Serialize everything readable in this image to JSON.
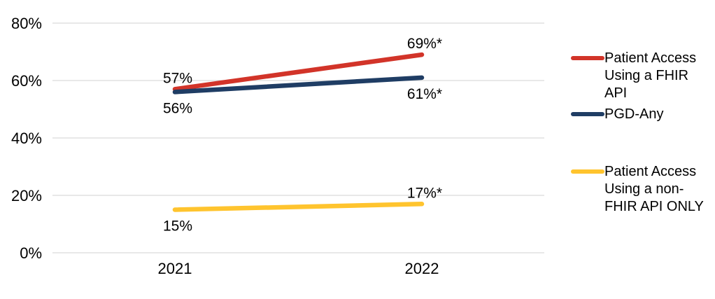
{
  "chart_data": {
    "type": "line",
    "x": [
      "2021",
      "2022"
    ],
    "ylim": [
      0,
      80
    ],
    "yticks": [
      {
        "label": "0%",
        "value": 0
      },
      {
        "label": "20%",
        "value": 20
      },
      {
        "label": "40%",
        "value": 40
      },
      {
        "label": "60%",
        "value": 60
      },
      {
        "label": "80%",
        "value": 80
      }
    ],
    "grid": "horizontal",
    "gridline_color": "#D9D9D9",
    "text_color": "#000000",
    "legend_position": "right",
    "series": [
      {
        "name": "Patient Access Using a FHIR API",
        "color": "#D23429",
        "values": [
          57,
          69
        ],
        "point_labels": [
          "57%",
          "69%*"
        ],
        "label_side": [
          "above",
          "above"
        ]
      },
      {
        "name": "PGD-Any",
        "color": "#1F3D64",
        "values": [
          56,
          61
        ],
        "point_labels": [
          "56%",
          "61%*"
        ],
        "label_side": [
          "below",
          "below"
        ]
      },
      {
        "name": "Patient Access Using a non-FHIR API ONLY",
        "color": "#FFC42E",
        "values": [
          15,
          17
        ],
        "point_labels": [
          "15%",
          "17%*"
        ],
        "label_side": [
          "below",
          "above"
        ]
      }
    ]
  }
}
